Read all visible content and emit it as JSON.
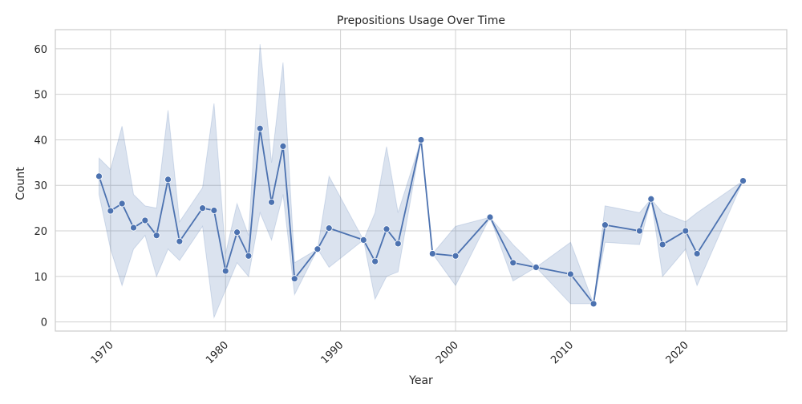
{
  "chart_data": {
    "type": "line",
    "title": "Prepositions Usage Over Time",
    "xlabel": "Year",
    "ylabel": "Count",
    "xlim": [
      1965.2,
      2028.8
    ],
    "ylim": [
      -2,
      64.2
    ],
    "xticks": [
      1970,
      1980,
      1990,
      2000,
      2010,
      2020
    ],
    "xtick_labels": [
      "1970",
      "1980",
      "1990",
      "2000",
      "2010",
      "2020"
    ],
    "yticks": [
      0,
      10,
      20,
      30,
      40,
      50,
      60
    ],
    "ytick_labels": [
      "0",
      "10",
      "20",
      "30",
      "40",
      "50",
      "60"
    ],
    "grid": true,
    "colors": {
      "line": "#4c72b0",
      "band": "#4c72b0",
      "grid": "#d0d0d0",
      "axes": "#cccccc"
    },
    "series": [
      {
        "x": [
          1969,
          1970,
          1971,
          1972,
          1973,
          1974,
          1975,
          1976,
          1978,
          1979,
          1980,
          1981,
          1982,
          1983,
          1984,
          1985,
          1986,
          1988,
          1989,
          1992,
          1993,
          1994,
          1995,
          1997,
          1998,
          2000,
          2003,
          2005,
          2007,
          2010,
          2012,
          2013,
          2016,
          2017,
          2018,
          2020,
          2021,
          2025
        ],
        "y": [
          32,
          24.4,
          26,
          20.7,
          22.3,
          19,
          31.3,
          17.7,
          25,
          24.5,
          11.2,
          19.7,
          14.5,
          42.5,
          26.3,
          38.6,
          9.5,
          16,
          20.6,
          18,
          13.3,
          20.4,
          17.2,
          40,
          15,
          14.5,
          23,
          13,
          12,
          10.5,
          4,
          21.3,
          20,
          27,
          17,
          20,
          15,
          31
        ],
        "ci_low": [
          28,
          16,
          8,
          16,
          19,
          10,
          16,
          13.5,
          21,
          1,
          7,
          13,
          10,
          24,
          18,
          28,
          6,
          16,
          12,
          18,
          5,
          10,
          11,
          40,
          15,
          8,
          23,
          9,
          12,
          4,
          4,
          17.5,
          17,
          27,
          10,
          16,
          8,
          31
        ],
        "ci_high": [
          36,
          33.5,
          43,
          28,
          25.5,
          25,
          46.5,
          22,
          29.5,
          48,
          15,
          26,
          19,
          61,
          35,
          57,
          13,
          16,
          32,
          18,
          24,
          38.5,
          24,
          40,
          15,
          21,
          23,
          17,
          12,
          17.5,
          4,
          25.5,
          24,
          27,
          24,
          22,
          24,
          31
        ]
      }
    ]
  }
}
